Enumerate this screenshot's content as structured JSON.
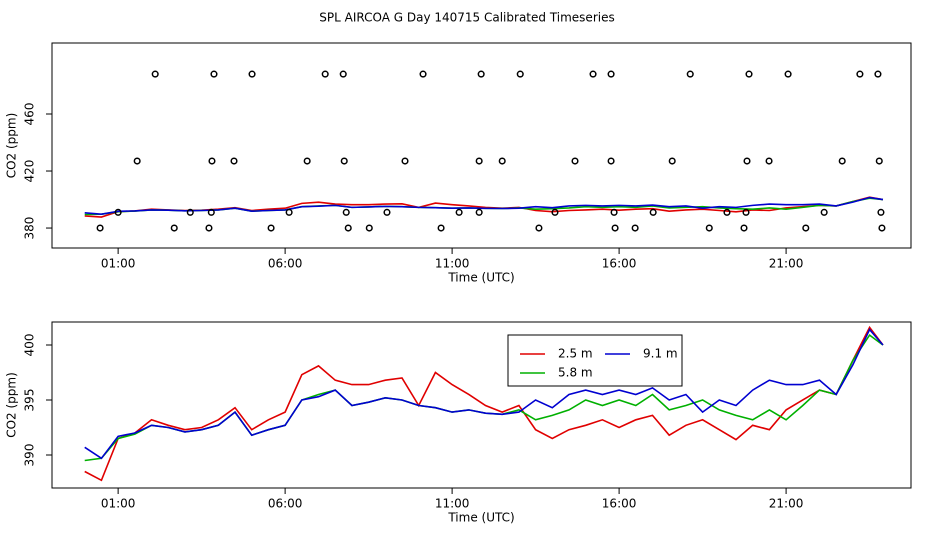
{
  "title": "SPL AIRCOA G  Day 140715  Calibrated Timeseries",
  "chart_data": [
    {
      "type": "line",
      "x_label": "Time (UTC)",
      "y_label": "CO2 (ppm)",
      "xlim": [
        -0.98,
        24.74
      ],
      "xticks": [
        {
          "value": 1,
          "label": "01:00"
        },
        {
          "value": 6,
          "label": "06:00"
        },
        {
          "value": 11,
          "label": "11:00"
        },
        {
          "value": 16,
          "label": "16:00"
        },
        {
          "value": 21,
          "label": "21:00"
        }
      ],
      "ylim": [
        366,
        509.8
      ],
      "yticks": [
        380,
        420,
        460
      ],
      "x": [
        0,
        0.5,
        1,
        1.5,
        2,
        2.5,
        3,
        3.5,
        4,
        4.5,
        5,
        5.5,
        6,
        6.5,
        7,
        7.5,
        8,
        8.5,
        9,
        9.5,
        10,
        10.5,
        11,
        11.5,
        12,
        12.5,
        13,
        13.5,
        14,
        14.5,
        15,
        15.5,
        16,
        16.5,
        17,
        17.5,
        18,
        18.5,
        19,
        19.5,
        20,
        20.5,
        21,
        21.5,
        22,
        22.5,
        23,
        23.5,
        23.9
      ],
      "series": [
        {
          "name": "2.5 m",
          "color": "#e00000",
          "values": [
            388.5,
            387.7,
            391.5,
            392,
            393.2,
            392.7,
            392.3,
            392.5,
            393.2,
            394.3,
            392.3,
            393.2,
            393.9,
            397.3,
            398.1,
            396.8,
            396.4,
            396.4,
            396.8,
            397,
            394.5,
            397.5,
            396.4,
            395.5,
            394.5,
            393.9,
            394.5,
            392.3,
            391.5,
            392.3,
            392.7,
            393.2,
            392.5,
            393.2,
            393.6,
            391.8,
            392.7,
            393.2,
            392.3,
            391.4,
            392.7,
            392.3,
            394.1,
            395,
            395.9,
            395.5,
            398.6,
            401.6,
            400
          ]
        },
        {
          "name": "5.8 m",
          "color": "#00b000",
          "values": [
            389.5,
            389.7,
            391.5,
            391.9,
            392.7,
            392.5,
            392.1,
            392.3,
            392.7,
            393.9,
            391.8,
            392.3,
            392.7,
            395,
            395.5,
            395.9,
            394.5,
            394.8,
            395.2,
            395,
            394.5,
            394.3,
            393.9,
            394.1,
            393.8,
            393.7,
            394.1,
            393.2,
            393.6,
            394.1,
            395,
            394.5,
            395,
            394.5,
            395.5,
            394.1,
            394.5,
            395,
            394.1,
            393.6,
            393.2,
            394.1,
            393.2,
            394.5,
            395.9,
            395.5,
            398.6,
            400.9,
            400
          ]
        },
        {
          "name": "9.1 m",
          "color": "#0000d0",
          "values": [
            390.7,
            389.7,
            391.7,
            392,
            392.7,
            392.5,
            392.1,
            392.3,
            392.7,
            393.9,
            391.8,
            392.3,
            392.7,
            395,
            395.3,
            395.9,
            394.5,
            394.8,
            395.2,
            395,
            394.5,
            394.3,
            393.9,
            394.1,
            393.8,
            393.7,
            393.9,
            395,
            394.3,
            395.5,
            395.9,
            395.5,
            395.9,
            395.5,
            396.1,
            395,
            395.5,
            393.9,
            395,
            394.5,
            395.9,
            396.8,
            396.4,
            396.4,
            396.8,
            395.5,
            398.2,
            401.4,
            400
          ]
        }
      ],
      "points": {
        "color": "#000000",
        "x": [
          2.11,
          3.87,
          5.01,
          7.2,
          7.74,
          10.13,
          11.87,
          13.04,
          15.22,
          15.76,
          18.13,
          19.89,
          21.06,
          23.21,
          23.75,
          1.57,
          3.81,
          4.47,
          6.66,
          7.77,
          9.59,
          11.81,
          12.5,
          14.68,
          15.76,
          17.59,
          19.83,
          20.49,
          22.68,
          23.79,
          1,
          3.16,
          3.79,
          6.12,
          7.83,
          9.05,
          11.21,
          11.81,
          14.08,
          15.85,
          17.02,
          19.23,
          19.8,
          22.14,
          23.84,
          0.46,
          2.68,
          3.72,
          5.58,
          7.89,
          8.52,
          10.67,
          13.6,
          15.88,
          16.48,
          18.7,
          19.74,
          21.59,
          23.87
        ],
        "y": [
          488,
          488,
          488,
          488,
          488,
          488,
          488,
          488,
          488,
          488,
          488,
          488,
          488,
          488,
          488,
          427,
          427,
          427,
          427,
          427,
          427,
          427,
          427,
          427,
          427,
          427,
          427,
          427,
          427,
          427,
          391,
          391,
          391,
          391,
          391,
          391,
          391,
          391,
          391,
          391,
          391,
          391,
          391,
          391,
          391,
          380,
          380,
          380,
          380,
          380,
          380,
          380,
          380,
          380,
          380,
          380,
          380,
          380,
          380
        ]
      }
    },
    {
      "type": "line",
      "x_label": "Time (UTC)",
      "y_label": "CO2 (ppm)",
      "legend": "top",
      "xlim": [
        -0.98,
        24.74
      ],
      "xticks": [
        {
          "value": 1,
          "label": "01:00"
        },
        {
          "value": 6,
          "label": "06:00"
        },
        {
          "value": 11,
          "label": "11:00"
        },
        {
          "value": 16,
          "label": "16:00"
        },
        {
          "value": 21,
          "label": "21:00"
        }
      ],
      "ylim": [
        387,
        402.09
      ],
      "yticks": [
        390,
        395,
        400
      ],
      "x": [
        0,
        0.5,
        1,
        1.5,
        2,
        2.5,
        3,
        3.5,
        4,
        4.5,
        5,
        5.5,
        6,
        6.5,
        7,
        7.5,
        8,
        8.5,
        9,
        9.5,
        10,
        10.5,
        11,
        11.5,
        12,
        12.5,
        13,
        13.5,
        14,
        14.5,
        15,
        15.5,
        16,
        16.5,
        17,
        17.5,
        18,
        18.5,
        19,
        19.5,
        20,
        20.5,
        21,
        21.5,
        22,
        22.5,
        23,
        23.5,
        23.9
      ],
      "series": [
        {
          "name": "2.5 m",
          "color": "#e00000",
          "values": [
            388.5,
            387.7,
            391.5,
            392,
            393.2,
            392.7,
            392.3,
            392.5,
            393.2,
            394.3,
            392.3,
            393.2,
            393.9,
            397.3,
            398.1,
            396.8,
            396.4,
            396.4,
            396.8,
            397,
            394.5,
            397.5,
            396.4,
            395.5,
            394.5,
            393.9,
            394.5,
            392.3,
            391.5,
            392.3,
            392.7,
            393.2,
            392.5,
            393.2,
            393.6,
            391.8,
            392.7,
            393.2,
            392.3,
            391.4,
            392.7,
            392.3,
            394.1,
            395,
            395.9,
            395.5,
            398.6,
            401.6,
            400
          ]
        },
        {
          "name": "5.8 m",
          "color": "#00b000",
          "values": [
            389.5,
            389.7,
            391.5,
            391.9,
            392.7,
            392.5,
            392.1,
            392.3,
            392.7,
            393.9,
            391.8,
            392.3,
            392.7,
            395,
            395.5,
            395.9,
            394.5,
            394.8,
            395.2,
            395,
            394.5,
            394.3,
            393.9,
            394.1,
            393.8,
            393.7,
            394.1,
            393.2,
            393.6,
            394.1,
            395,
            394.5,
            395,
            394.5,
            395.5,
            394.1,
            394.5,
            395,
            394.1,
            393.6,
            393.2,
            394.1,
            393.2,
            394.5,
            395.9,
            395.5,
            398.6,
            400.9,
            400
          ]
        },
        {
          "name": "9.1 m",
          "color": "#0000d0",
          "values": [
            390.7,
            389.7,
            391.7,
            392,
            392.7,
            392.5,
            392.1,
            392.3,
            392.7,
            393.9,
            391.8,
            392.3,
            392.7,
            395,
            395.3,
            395.9,
            394.5,
            394.8,
            395.2,
            395,
            394.5,
            394.3,
            393.9,
            394.1,
            393.8,
            393.7,
            393.9,
            395,
            394.3,
            395.5,
            395.9,
            395.5,
            395.9,
            395.5,
            396.1,
            395,
            395.5,
            393.9,
            395,
            394.5,
            395.9,
            396.8,
            396.4,
            396.4,
            396.8,
            395.5,
            398.2,
            401.4,
            400
          ]
        }
      ]
    }
  ]
}
